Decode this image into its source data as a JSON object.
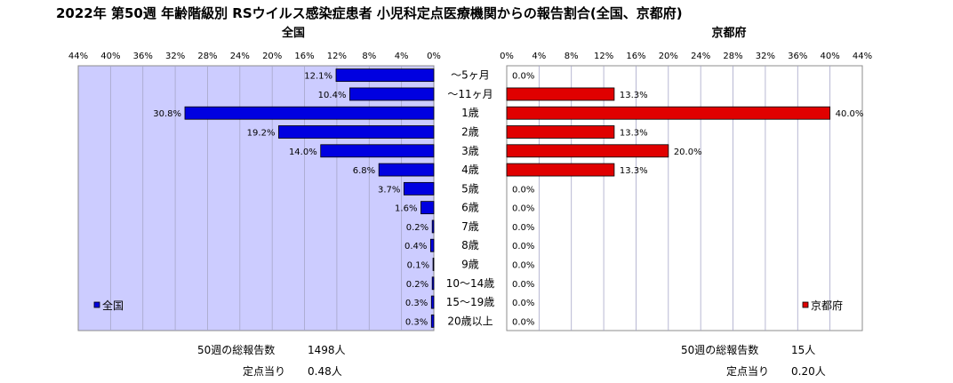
{
  "title": "2022年 第50週 年齢階級別 RSウイルス感染症患者 小児科定点医療機関からの報告割合(全国、京都府)",
  "colors": {
    "plot_bg": "#ccccff",
    "left_bar": "#0000e0",
    "right_bar": "#e00000",
    "grid": "#a6a6c8",
    "right_bg": "#ffffff"
  },
  "chart_data": [
    {
      "type": "bar",
      "orientation": "horizontal",
      "direction": "right-to-left",
      "title": "全国",
      "legend": "全国",
      "legend_position": "bottom-left",
      "categories": [
        "～5ヶ月",
        "～11ヶ月",
        "1歳",
        "2歳",
        "3歳",
        "4歳",
        "5歳",
        "6歳",
        "7歳",
        "8歳",
        "9歳",
        "10～14歳",
        "15～19歳",
        "20歳以上"
      ],
      "values": [
        12.1,
        10.4,
        30.8,
        19.2,
        14.0,
        6.8,
        3.7,
        1.6,
        0.2,
        0.4,
        0.1,
        0.2,
        0.3,
        0.3
      ],
      "value_labels": [
        "12.1%",
        "10.4%",
        "30.8%",
        "19.2%",
        "14.0%",
        "6.8%",
        "3.7%",
        "1.6%",
        "0.2%",
        "0.4%",
        "0.1%",
        "0.2%",
        "0.3%",
        "0.3%"
      ],
      "xlim": [
        0,
        44
      ],
      "ticks": [
        "0%",
        "4%",
        "8%",
        "12%",
        "16%",
        "20%",
        "24%",
        "28%",
        "32%",
        "36%",
        "40%",
        "44%"
      ],
      "grid": true
    },
    {
      "type": "bar",
      "orientation": "horizontal",
      "direction": "left-to-right",
      "title": "京都府",
      "legend": "京都府",
      "legend_position": "bottom-right",
      "categories": [
        "～5ヶ月",
        "～11ヶ月",
        "1歳",
        "2歳",
        "3歳",
        "4歳",
        "5歳",
        "6歳",
        "7歳",
        "8歳",
        "9歳",
        "10～14歳",
        "15～19歳",
        "20歳以上"
      ],
      "values": [
        0.0,
        13.3,
        40.0,
        13.3,
        20.0,
        13.3,
        0.0,
        0.0,
        0.0,
        0.0,
        0.0,
        0.0,
        0.0,
        0.0
      ],
      "value_labels": [
        "0.0%",
        "13.3%",
        "40.0%",
        "13.3%",
        "20.0%",
        "13.3%",
        "0.0%",
        "0.0%",
        "0.0%",
        "0.0%",
        "0.0%",
        "0.0%",
        "0.0%",
        "0.0%"
      ],
      "xlim": [
        0,
        44
      ],
      "ticks": [
        "0%",
        "4%",
        "8%",
        "12%",
        "16%",
        "20%",
        "24%",
        "28%",
        "32%",
        "36%",
        "40%",
        "44%"
      ],
      "grid": true
    }
  ],
  "footer": {
    "left": {
      "reports_label": "50週の総報告数",
      "reports_value": "1498人",
      "per_label": "定点当り",
      "per_value": "0.48人"
    },
    "right": {
      "reports_label": "50週の総報告数",
      "reports_value": "15人",
      "per_label": "定点当り",
      "per_value": "0.20人"
    }
  }
}
